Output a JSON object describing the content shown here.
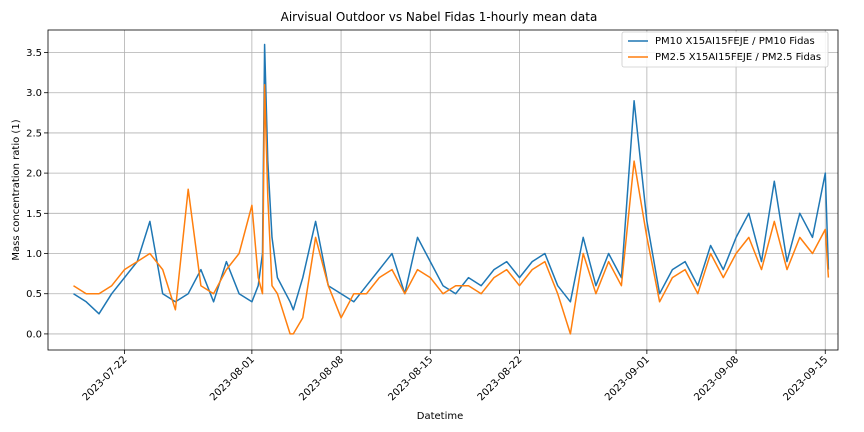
{
  "chart_data": {
    "type": "line",
    "title": "Airvisual Outdoor vs Nabel Fidas 1-hourly mean data",
    "xlabel": "Datetime",
    "ylabel": "Mass concentration ratio (1)",
    "xlim": [
      "2023-07-16",
      "2023-09-16"
    ],
    "ylim": [
      -0.2,
      3.78
    ],
    "grid": true,
    "legend_position": "top-right",
    "x_ticks": [
      "2023-07-22",
      "2023-08-01",
      "2023-08-08",
      "2023-08-15",
      "2023-08-22",
      "2023-09-01",
      "2023-09-08",
      "2023-09-15"
    ],
    "y_ticks": [
      0.0,
      0.5,
      1.0,
      1.5,
      2.0,
      2.5,
      3.0,
      3.5
    ],
    "y_tick_labels": [
      "0.0",
      "0.5",
      "1.0",
      "1.5",
      "2.0",
      "2.5",
      "3.0",
      "3.5"
    ],
    "series": [
      {
        "name": "PM10 X15AI15FEJE / PM10 Fidas",
        "color": "#1f77b4",
        "points": [
          [
            "2023-07-18",
            0.5
          ],
          [
            "2023-07-19",
            0.4
          ],
          [
            "2023-07-20",
            0.25
          ],
          [
            "2023-07-21",
            0.5
          ],
          [
            "2023-07-22",
            0.7
          ],
          [
            "2023-07-23",
            0.9
          ],
          [
            "2023-07-24",
            1.4
          ],
          [
            "2023-07-25",
            0.5
          ],
          [
            "2023-07-26",
            0.4
          ],
          [
            "2023-07-27",
            0.5
          ],
          [
            "2023-07-28",
            0.8
          ],
          [
            "2023-07-29",
            0.4
          ],
          [
            "2023-07-30",
            0.9
          ],
          [
            "2023-07-31",
            0.5
          ],
          [
            "2023-08-01",
            0.4
          ],
          [
            "2023-08-01T12",
            0.6
          ],
          [
            "2023-08-01T20",
            1.0
          ],
          [
            "2023-08-02",
            3.6
          ],
          [
            "2023-08-02T06",
            2.15
          ],
          [
            "2023-08-02T14",
            1.2
          ],
          [
            "2023-08-03",
            0.7
          ],
          [
            "2023-08-04",
            0.4
          ],
          [
            "2023-08-04T06",
            0.3
          ],
          [
            "2023-08-05",
            0.7
          ],
          [
            "2023-08-06",
            1.4
          ],
          [
            "2023-08-07",
            0.6
          ],
          [
            "2023-08-08",
            0.5
          ],
          [
            "2023-08-09",
            0.4
          ],
          [
            "2023-08-10",
            0.6
          ],
          [
            "2023-08-11",
            0.8
          ],
          [
            "2023-08-12",
            1.0
          ],
          [
            "2023-08-13",
            0.5
          ],
          [
            "2023-08-14",
            1.2
          ],
          [
            "2023-08-15",
            0.9
          ],
          [
            "2023-08-16",
            0.6
          ],
          [
            "2023-08-17",
            0.5
          ],
          [
            "2023-08-18",
            0.7
          ],
          [
            "2023-08-19",
            0.6
          ],
          [
            "2023-08-20",
            0.8
          ],
          [
            "2023-08-21",
            0.9
          ],
          [
            "2023-08-22",
            0.7
          ],
          [
            "2023-08-23",
            0.9
          ],
          [
            "2023-08-24",
            1.0
          ],
          [
            "2023-08-25",
            0.6
          ],
          [
            "2023-08-26",
            0.4
          ],
          [
            "2023-08-27",
            1.2
          ],
          [
            "2023-08-28",
            0.6
          ],
          [
            "2023-08-29",
            1.0
          ],
          [
            "2023-08-30",
            0.7
          ],
          [
            "2023-08-31",
            2.9
          ],
          [
            "2023-09-01",
            1.4
          ],
          [
            "2023-09-02",
            0.5
          ],
          [
            "2023-09-03",
            0.8
          ],
          [
            "2023-09-04",
            0.9
          ],
          [
            "2023-09-05",
            0.6
          ],
          [
            "2023-09-06",
            1.1
          ],
          [
            "2023-09-07",
            0.8
          ],
          [
            "2023-09-08",
            1.2
          ],
          [
            "2023-09-09",
            1.5
          ],
          [
            "2023-09-10",
            0.9
          ],
          [
            "2023-09-11",
            1.9
          ],
          [
            "2023-09-12",
            0.9
          ],
          [
            "2023-09-13",
            1.5
          ],
          [
            "2023-09-14",
            1.2
          ],
          [
            "2023-09-15",
            2.0
          ],
          [
            "2023-09-15T06",
            0.8
          ]
        ]
      },
      {
        "name": "PM2.5 X15AI15FEJE / PM2.5 Fidas",
        "color": "#ff7f0e",
        "points": [
          [
            "2023-07-18",
            0.6
          ],
          [
            "2023-07-19",
            0.5
          ],
          [
            "2023-07-20",
            0.5
          ],
          [
            "2023-07-21",
            0.6
          ],
          [
            "2023-07-22",
            0.8
          ],
          [
            "2023-07-23",
            0.9
          ],
          [
            "2023-07-24",
            1.0
          ],
          [
            "2023-07-25",
            0.8
          ],
          [
            "2023-07-26",
            0.3
          ],
          [
            "2023-07-27",
            1.8
          ],
          [
            "2023-07-28",
            0.6
          ],
          [
            "2023-07-29",
            0.5
          ],
          [
            "2023-07-30",
            0.8
          ],
          [
            "2023-07-31",
            1.0
          ],
          [
            "2023-08-01",
            1.6
          ],
          [
            "2023-08-01T12",
            0.7
          ],
          [
            "2023-08-01T20",
            0.5
          ],
          [
            "2023-08-02",
            3.1
          ],
          [
            "2023-08-02T06",
            1.7
          ],
          [
            "2023-08-02T14",
            0.6
          ],
          [
            "2023-08-03",
            0.5
          ],
          [
            "2023-08-04",
            0.0
          ],
          [
            "2023-08-04T06",
            0.0
          ],
          [
            "2023-08-05",
            0.2
          ],
          [
            "2023-08-06",
            1.2
          ],
          [
            "2023-08-07",
            0.6
          ],
          [
            "2023-08-08",
            0.2
          ],
          [
            "2023-08-09",
            0.5
          ],
          [
            "2023-08-10",
            0.5
          ],
          [
            "2023-08-11",
            0.7
          ],
          [
            "2023-08-12",
            0.8
          ],
          [
            "2023-08-13",
            0.5
          ],
          [
            "2023-08-14",
            0.8
          ],
          [
            "2023-08-15",
            0.7
          ],
          [
            "2023-08-16",
            0.5
          ],
          [
            "2023-08-17",
            0.6
          ],
          [
            "2023-08-18",
            0.6
          ],
          [
            "2023-08-19",
            0.5
          ],
          [
            "2023-08-20",
            0.7
          ],
          [
            "2023-08-21",
            0.8
          ],
          [
            "2023-08-22",
            0.6
          ],
          [
            "2023-08-23",
            0.8
          ],
          [
            "2023-08-24",
            0.9
          ],
          [
            "2023-08-25",
            0.5
          ],
          [
            "2023-08-26",
            0.0
          ],
          [
            "2023-08-27",
            1.0
          ],
          [
            "2023-08-28",
            0.5
          ],
          [
            "2023-08-29",
            0.9
          ],
          [
            "2023-08-30",
            0.6
          ],
          [
            "2023-08-31",
            2.15
          ],
          [
            "2023-09-01",
            1.2
          ],
          [
            "2023-09-02",
            0.4
          ],
          [
            "2023-09-03",
            0.7
          ],
          [
            "2023-09-04",
            0.8
          ],
          [
            "2023-09-05",
            0.5
          ],
          [
            "2023-09-06",
            1.0
          ],
          [
            "2023-09-07",
            0.7
          ],
          [
            "2023-09-08",
            1.0
          ],
          [
            "2023-09-09",
            1.2
          ],
          [
            "2023-09-10",
            0.8
          ],
          [
            "2023-09-11",
            1.4
          ],
          [
            "2023-09-12",
            0.8
          ],
          [
            "2023-09-13",
            1.2
          ],
          [
            "2023-09-14",
            1.0
          ],
          [
            "2023-09-15",
            1.3
          ],
          [
            "2023-09-15T06",
            0.7
          ]
        ]
      }
    ]
  }
}
